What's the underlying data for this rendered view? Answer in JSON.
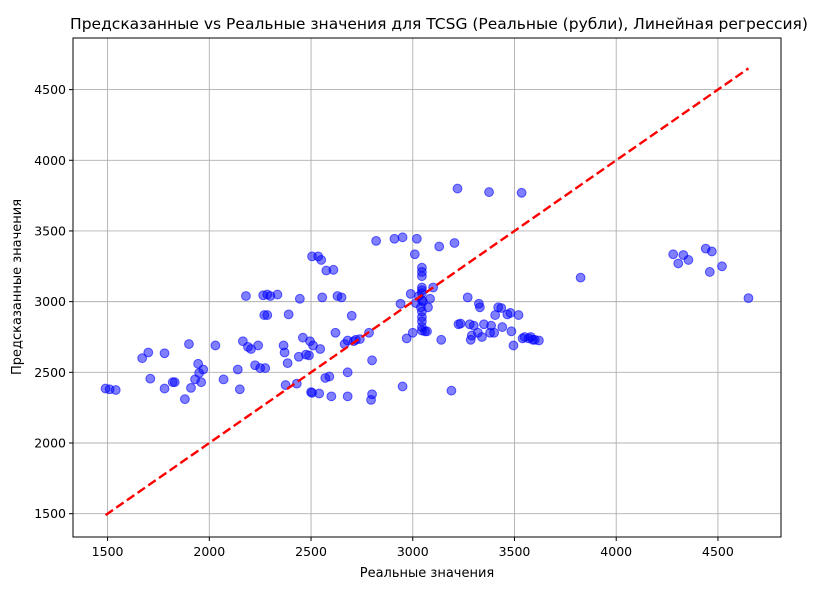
{
  "chart_data": {
    "type": "scatter",
    "title": "Предсказанные vs Реальные значения для TCSG (Реальные (рубли), Линейная регрессия)",
    "xlabel": "Реальные значения",
    "ylabel": "Предсказанные значения",
    "xlim": [
      1330,
      4810
    ],
    "ylim": [
      1335,
      4865
    ],
    "xticks": [
      1500,
      2000,
      2500,
      3000,
      3500,
      4000,
      4500
    ],
    "yticks": [
      1500,
      2000,
      2500,
      3000,
      3500,
      4000,
      4500
    ],
    "grid": true,
    "colors": {
      "points": "#0000ff",
      "reference_line": "#ff0000"
    },
    "reference_line": {
      "x": [
        1490,
        4650
      ],
      "y": [
        1490,
        4650
      ]
    },
    "points": [
      [
        1490,
        2385
      ],
      [
        1510,
        2380
      ],
      [
        1540,
        2375
      ],
      [
        1670,
        2600
      ],
      [
        1700,
        2640
      ],
      [
        1710,
        2455
      ],
      [
        1780,
        2635
      ],
      [
        1780,
        2385
      ],
      [
        1820,
        2430
      ],
      [
        1830,
        2430
      ],
      [
        1880,
        2310
      ],
      [
        1900,
        2700
      ],
      [
        1910,
        2390
      ],
      [
        1930,
        2450
      ],
      [
        1945,
        2560
      ],
      [
        1950,
        2495
      ],
      [
        1960,
        2430
      ],
      [
        1970,
        2520
      ],
      [
        2030,
        2690
      ],
      [
        2070,
        2450
      ],
      [
        2140,
        2520
      ],
      [
        2150,
        2380
      ],
      [
        2165,
        2720
      ],
      [
        2180,
        3040
      ],
      [
        2190,
        2680
      ],
      [
        2205,
        2665
      ],
      [
        2225,
        2550
      ],
      [
        2240,
        2690
      ],
      [
        2250,
        2530
      ],
      [
        2265,
        3045
      ],
      [
        2275,
        2530
      ],
      [
        2270,
        2905
      ],
      [
        2285,
        2905
      ],
      [
        2285,
        3050
      ],
      [
        2300,
        3040
      ],
      [
        2335,
        3050
      ],
      [
        2365,
        2690
      ],
      [
        2370,
        2640
      ],
      [
        2375,
        2410
      ],
      [
        2385,
        2565
      ],
      [
        2390,
        2910
      ],
      [
        2430,
        2420
      ],
      [
        2440,
        2610
      ],
      [
        2445,
        3020
      ],
      [
        2460,
        2745
      ],
      [
        2475,
        2625
      ],
      [
        2490,
        2620
      ],
      [
        2495,
        2720
      ],
      [
        2500,
        2360
      ],
      [
        2505,
        2355
      ],
      [
        2505,
        3320
      ],
      [
        2510,
        2690
      ],
      [
        2535,
        3320
      ],
      [
        2540,
        2350
      ],
      [
        2545,
        2665
      ],
      [
        2550,
        3295
      ],
      [
        2555,
        3030
      ],
      [
        2570,
        2460
      ],
      [
        2575,
        3220
      ],
      [
        2590,
        2470
      ],
      [
        2600,
        2330
      ],
      [
        2610,
        3225
      ],
      [
        2620,
        2780
      ],
      [
        2630,
        3040
      ],
      [
        2650,
        3030
      ],
      [
        2665,
        2700
      ],
      [
        2680,
        2330
      ],
      [
        2680,
        2725
      ],
      [
        2680,
        2500
      ],
      [
        2700,
        2900
      ],
      [
        2710,
        2720
      ],
      [
        2720,
        2730
      ],
      [
        2740,
        2735
      ],
      [
        2785,
        2780
      ],
      [
        2795,
        2305
      ],
      [
        2800,
        2585
      ],
      [
        2800,
        2345
      ],
      [
        2820,
        3430
      ],
      [
        2910,
        3445
      ],
      [
        2940,
        2985
      ],
      [
        2950,
        3455
      ],
      [
        2950,
        2400
      ],
      [
        2970,
        2740
      ],
      [
        2990,
        3055
      ],
      [
        3000,
        2780
      ],
      [
        3010,
        3335
      ],
      [
        3015,
        2990
      ],
      [
        3020,
        3445
      ],
      [
        3030,
        3040
      ],
      [
        3040,
        2960
      ],
      [
        3045,
        3240
      ],
      [
        3045,
        3210
      ],
      [
        3045,
        3180
      ],
      [
        3045,
        3100
      ],
      [
        3045,
        3080
      ],
      [
        3045,
        3060
      ],
      [
        3045,
        3010
      ],
      [
        3045,
        2930
      ],
      [
        3045,
        2890
      ],
      [
        3045,
        2860
      ],
      [
        3045,
        2820
      ],
      [
        3045,
        2795
      ],
      [
        3050,
        3000
      ],
      [
        3060,
        2790
      ],
      [
        3070,
        2790
      ],
      [
        3075,
        2960
      ],
      [
        3085,
        3020
      ],
      [
        3100,
        3100
      ],
      [
        3130,
        3390
      ],
      [
        3140,
        2730
      ],
      [
        3190,
        2370
      ],
      [
        3205,
        3415
      ],
      [
        3220,
        3800
      ],
      [
        3225,
        2840
      ],
      [
        3235,
        2845
      ],
      [
        3270,
        3030
      ],
      [
        3280,
        2840
      ],
      [
        3285,
        2730
      ],
      [
        3290,
        2760
      ],
      [
        3300,
        2830
      ],
      [
        3320,
        2780
      ],
      [
        3325,
        2985
      ],
      [
        3330,
        2960
      ],
      [
        3340,
        2750
      ],
      [
        3350,
        2840
      ],
      [
        3375,
        3775
      ],
      [
        3380,
        2780
      ],
      [
        3385,
        2830
      ],
      [
        3400,
        2780
      ],
      [
        3405,
        2905
      ],
      [
        3420,
        2960
      ],
      [
        3435,
        2955
      ],
      [
        3440,
        2820
      ],
      [
        3465,
        2910
      ],
      [
        3480,
        2920
      ],
      [
        3485,
        2790
      ],
      [
        3495,
        2690
      ],
      [
        3520,
        2905
      ],
      [
        3535,
        3770
      ],
      [
        3540,
        2740
      ],
      [
        3550,
        2750
      ],
      [
        3570,
        2740
      ],
      [
        3580,
        2750
      ],
      [
        3590,
        2730
      ],
      [
        3600,
        2730
      ],
      [
        3620,
        2725
      ],
      [
        3825,
        3170
      ],
      [
        4280,
        3335
      ],
      [
        4305,
        3270
      ],
      [
        4330,
        3330
      ],
      [
        4355,
        3295
      ],
      [
        4440,
        3375
      ],
      [
        4460,
        3210
      ],
      [
        4470,
        3355
      ],
      [
        4520,
        3250
      ],
      [
        4650,
        3025
      ]
    ]
  }
}
